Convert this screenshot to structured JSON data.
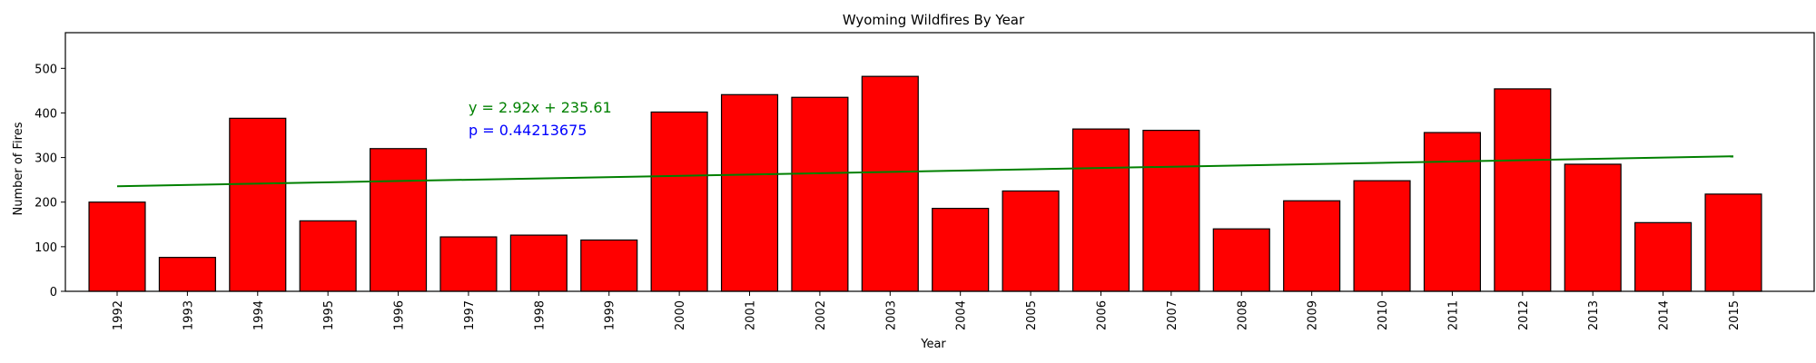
{
  "chart_data": {
    "type": "bar",
    "title": "Wyoming Wildfires By Year",
    "xlabel": "Year",
    "ylabel": "Number of Fires",
    "ylim": [
      0,
      580
    ],
    "yticks": [
      0,
      100,
      200,
      300,
      400,
      500
    ],
    "categories": [
      "1992",
      "1993",
      "1994",
      "1995",
      "1996",
      "1997",
      "1998",
      "1999",
      "2000",
      "2001",
      "2002",
      "2003",
      "2004",
      "2005",
      "2006",
      "2007",
      "2008",
      "2009",
      "2010",
      "2011",
      "2012",
      "2013",
      "2014",
      "2015"
    ],
    "values": [
      200,
      76,
      388,
      158,
      320,
      122,
      126,
      115,
      402,
      441,
      435,
      482,
      186,
      225,
      364,
      361,
      140,
      203,
      248,
      356,
      454,
      285,
      154,
      218
    ],
    "bar_color": "#ff0000",
    "bar_edge_color": "#000000",
    "trendline": {
      "slope": 2.92,
      "intercept": 235.61,
      "color": "#008000",
      "equation_label": "y = 2.92x + 235.61"
    },
    "p_value_label": "p = 0.44213675",
    "p_value_color": "#0000ff",
    "grid": false,
    "legend": "none"
  }
}
